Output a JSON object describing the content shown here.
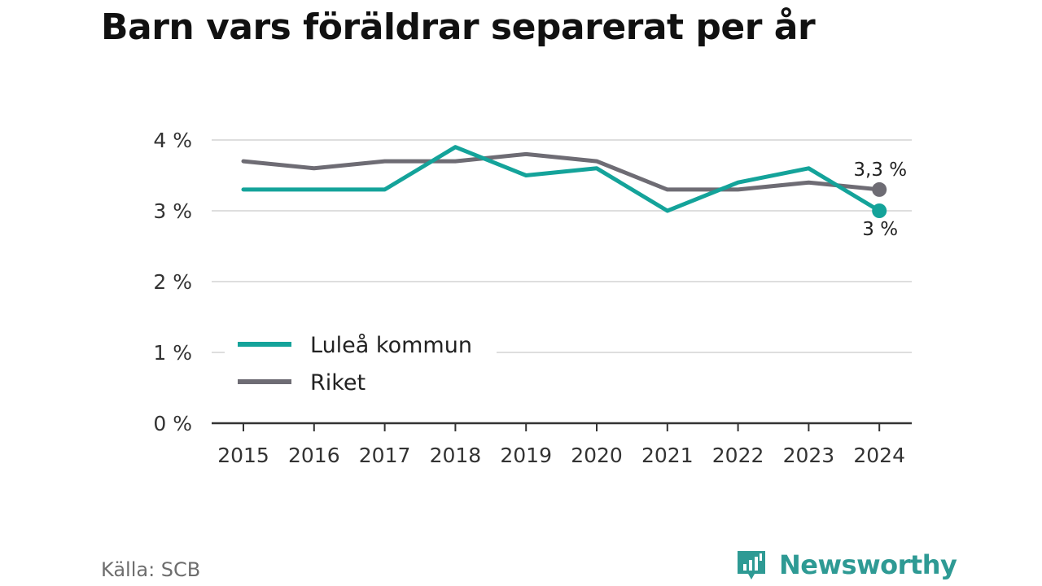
{
  "title": "Barn vars föräldrar separerat per år",
  "source": "Källa: SCB",
  "brand": {
    "name": "Newsworthy",
    "icon": "newsworthy-logo-icon",
    "color": "#2e9a94"
  },
  "chart_data": {
    "type": "line",
    "title": "Barn vars föräldrar separerat per år",
    "x": [
      "2015",
      "2016",
      "2017",
      "2018",
      "2019",
      "2020",
      "2021",
      "2022",
      "2023",
      "2024"
    ],
    "ylim": [
      0,
      4
    ],
    "yticks": [
      0,
      1,
      2,
      3,
      4
    ],
    "ytick_labels": [
      "0 %",
      "1 %",
      "2 %",
      "3 %",
      "4 %"
    ],
    "grid": true,
    "legend_position": "bottom-left",
    "series": [
      {
        "name": "Luleå kommun",
        "color": "#14a39a",
        "values": [
          3.3,
          3.3,
          3.3,
          3.9,
          3.5,
          3.6,
          3.0,
          3.4,
          3.6,
          3.0
        ],
        "end_label": "3 %"
      },
      {
        "name": "Riket",
        "color": "#6e6c74",
        "values": [
          3.7,
          3.6,
          3.7,
          3.7,
          3.8,
          3.7,
          3.3,
          3.3,
          3.4,
          3.3
        ],
        "end_label": "3,3 %"
      }
    ]
  }
}
